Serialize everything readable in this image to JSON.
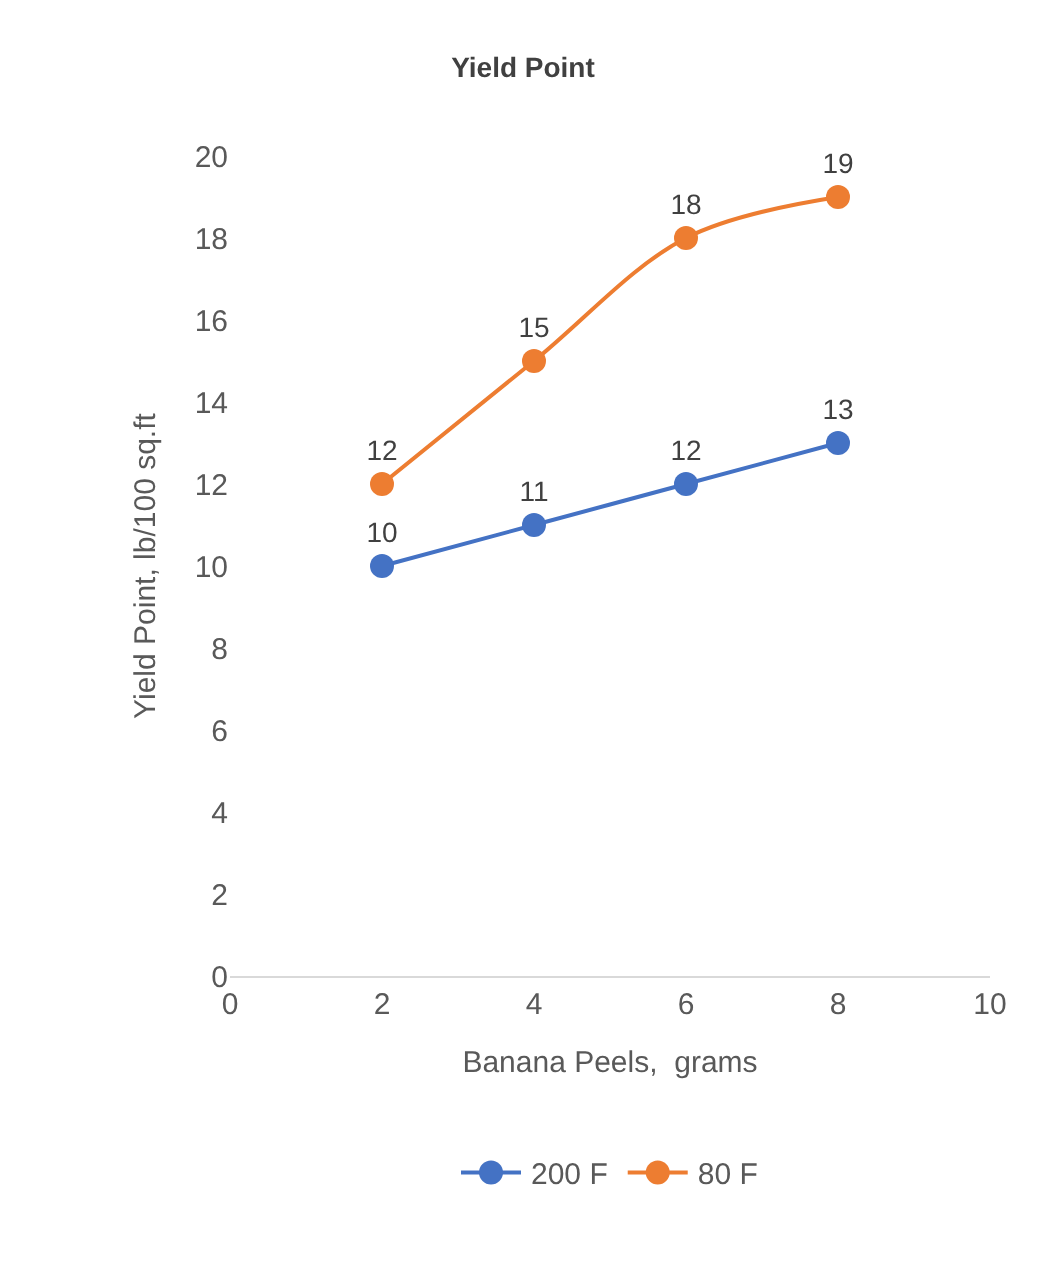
{
  "chart_data": {
    "type": "line",
    "title": "Yield Point",
    "xlabel": "Banana Peels,  grams",
    "ylabel": "Yield Point, lb/100 sq.ft",
    "x": [
      2,
      4,
      6,
      8
    ],
    "series": [
      {
        "name": "200 F",
        "color": "#4472c4",
        "values": [
          10,
          11,
          12,
          13
        ]
      },
      {
        "name": "80 F",
        "color": "#ed7d31",
        "values": [
          12,
          15,
          18,
          19
        ]
      }
    ],
    "xlim": [
      0,
      10
    ],
    "xticks": [
      0,
      2,
      4,
      6,
      8,
      10
    ],
    "ylim": [
      0,
      20
    ],
    "yticks": [
      0,
      2,
      4,
      6,
      8,
      10,
      12,
      14,
      16,
      18,
      20
    ],
    "legend": "bottom",
    "marker": "circle",
    "line_style": "solid",
    "data_labels": true
  }
}
